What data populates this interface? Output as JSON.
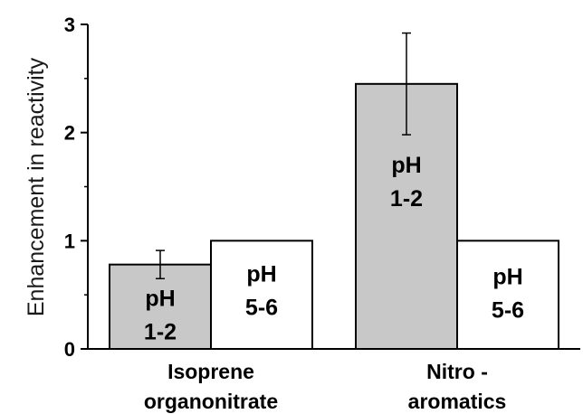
{
  "chart_data": {
    "type": "bar",
    "categories": [
      {
        "lines": [
          "Isoprene",
          "organonitrate"
        ]
      },
      {
        "lines": [
          "Nitro -",
          "aromatics"
        ]
      }
    ],
    "series": [
      {
        "values": [
          0.78,
          2.45
        ],
        "errors": [
          0.13,
          0.47
        ],
        "color": "#c8c8c8"
      },
      {
        "values": [
          1.0,
          1.0
        ],
        "errors": [
          null,
          null
        ],
        "color": "#ffffff"
      }
    ],
    "bar_labels": [
      [
        [
          "pH",
          "1-2"
        ],
        [
          "pH",
          "1-2"
        ]
      ],
      [
        [
          "pH",
          "5-6"
        ],
        [
          "pH",
          "5-6"
        ]
      ]
    ],
    "ylabel": "Enhancement in reactivity",
    "ylim": [
      0,
      3
    ],
    "yticks": [
      0,
      1,
      2,
      3
    ],
    "ytick_labels": [
      "0",
      "1",
      "2",
      "3"
    ],
    "grid": false
  }
}
